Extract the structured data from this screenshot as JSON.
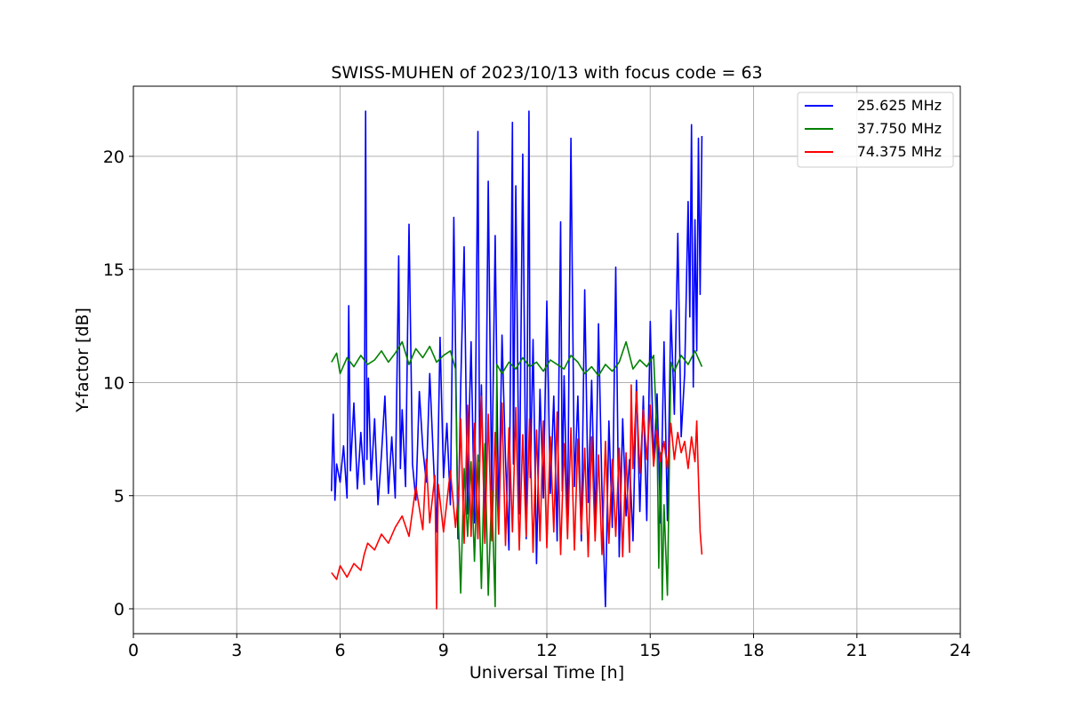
{
  "chart_data": {
    "type": "line",
    "title": "SWISS-MUHEN of 2023/10/13 with focus code = 63",
    "xlabel": "Universal Time [h]",
    "ylabel": "Y-factor [dB]",
    "xlim": [
      0,
      24
    ],
    "ylim": [
      -1.1,
      23.1
    ],
    "xticks": [
      0,
      3,
      6,
      9,
      12,
      15,
      18,
      21,
      24
    ],
    "yticks": [
      0,
      5,
      10,
      15,
      20
    ],
    "grid": true,
    "legend_position": "top-right",
    "series": [
      {
        "name": "25.625 MHz",
        "color": "#0000ff",
        "x": [
          5.75,
          5.8,
          5.85,
          5.9,
          6.0,
          6.1,
          6.2,
          6.25,
          6.3,
          6.4,
          6.5,
          6.6,
          6.7,
          6.74,
          6.78,
          6.82,
          6.9,
          7.0,
          7.1,
          7.2,
          7.3,
          7.4,
          7.5,
          7.6,
          7.7,
          7.75,
          7.8,
          7.9,
          8.0,
          8.1,
          8.2,
          8.3,
          8.4,
          8.5,
          8.6,
          8.7,
          8.8,
          8.9,
          9.0,
          9.1,
          9.2,
          9.3,
          9.38,
          9.42,
          9.5,
          9.6,
          9.7,
          9.75,
          9.8,
          9.9,
          10.0,
          10.05,
          10.1,
          10.2,
          10.3,
          10.4,
          10.5,
          10.6,
          10.7,
          10.8,
          10.9,
          11.0,
          11.03,
          11.1,
          11.2,
          11.3,
          11.4,
          11.48,
          11.52,
          11.6,
          11.7,
          11.8,
          11.9,
          12.0,
          12.1,
          12.2,
          12.3,
          12.4,
          12.45,
          12.5,
          12.6,
          12.7,
          12.8,
          12.9,
          13.0,
          13.1,
          13.2,
          13.3,
          13.4,
          13.5,
          13.6,
          13.7,
          13.8,
          13.9,
          14.0,
          14.1,
          14.2,
          14.3,
          14.4,
          14.5,
          14.6,
          14.7,
          14.8,
          14.9,
          15.0,
          15.1,
          15.2,
          15.3,
          15.4,
          15.5,
          15.6,
          15.7,
          15.8,
          15.9,
          16.0,
          16.1,
          16.15,
          16.2,
          16.25,
          16.3,
          16.35,
          16.4,
          16.45,
          16.5
        ],
        "values": [
          5.2,
          8.6,
          4.8,
          6.4,
          5.6,
          7.2,
          4.9,
          13.4,
          6.1,
          9.1,
          5.3,
          7.8,
          5.5,
          22.0,
          6.6,
          10.2,
          5.7,
          8.4,
          4.6,
          6.8,
          9.4,
          5.1,
          7.6,
          4.9,
          15.6,
          6.2,
          8.8,
          5.4,
          17.0,
          6.4,
          4.8,
          9.6,
          7.1,
          5.6,
          10.4,
          6.9,
          3.4,
          12.0,
          5.8,
          8.2,
          4.6,
          17.3,
          7.9,
          3.1,
          9.8,
          16.0,
          4.2,
          8.6,
          11.8,
          3.8,
          21.1,
          6.5,
          9.9,
          2.9,
          18.9,
          5.1,
          16.5,
          3.7,
          12.1,
          6.6,
          2.6,
          21.5,
          6.4,
          18.7,
          4.2,
          20.1,
          3.1,
          22.0,
          5.8,
          11.9,
          2.0,
          9.7,
          4.9,
          13.6,
          5.1,
          9.4,
          3.0,
          17.1,
          5.2,
          10.3,
          3.5,
          20.8,
          5.4,
          9.4,
          3.0,
          14.1,
          4.7,
          10.1,
          3.5,
          12.6,
          5.2,
          0.1,
          8.3,
          3.6,
          15.1,
          2.3,
          8.4,
          4.1,
          6.6,
          3.0,
          10.1,
          4.3,
          9.4,
          3.9,
          12.7,
          6.4,
          9.5,
          3.8,
          11.8,
          3.9,
          13.2,
          8.6,
          16.6,
          7.6,
          10.4,
          18.0,
          12.9,
          21.4,
          9.8,
          17.2,
          11.4,
          20.8,
          13.9,
          20.9
        ]
      },
      {
        "name": "37.750 MHz",
        "color": "#008000",
        "x": [
          5.75,
          5.9,
          6.0,
          6.2,
          6.4,
          6.6,
          6.8,
          7.0,
          7.2,
          7.4,
          7.6,
          7.8,
          8.0,
          8.2,
          8.4,
          8.6,
          8.8,
          9.0,
          9.2,
          9.35,
          9.4,
          9.5,
          9.6,
          9.7,
          9.8,
          9.9,
          10.0,
          10.1,
          10.2,
          10.3,
          10.4,
          10.5,
          10.55,
          10.7,
          10.9,
          11.1,
          11.3,
          11.5,
          11.7,
          11.9,
          12.1,
          12.3,
          12.5,
          12.7,
          12.9,
          13.1,
          13.3,
          13.5,
          13.7,
          13.9,
          14.1,
          14.3,
          14.5,
          14.7,
          14.9,
          15.1,
          15.2,
          15.25,
          15.3,
          15.35,
          15.4,
          15.5,
          15.6,
          15.7,
          15.9,
          16.1,
          16.3,
          16.5
        ],
        "values": [
          10.9,
          11.3,
          10.4,
          11.1,
          10.7,
          11.2,
          10.8,
          11.0,
          11.4,
          10.9,
          11.3,
          11.8,
          10.8,
          11.5,
          11.1,
          11.6,
          10.9,
          11.2,
          11.4,
          10.6,
          5.5,
          0.7,
          6.2,
          3.2,
          6.5,
          2.1,
          6.8,
          0.9,
          7.3,
          0.6,
          5.2,
          0.1,
          10.8,
          10.4,
          10.9,
          10.6,
          11.1,
          10.7,
          10.9,
          10.5,
          11.0,
          10.8,
          10.6,
          11.2,
          10.9,
          10.4,
          10.7,
          10.3,
          10.8,
          10.5,
          10.9,
          11.8,
          10.6,
          11.0,
          10.7,
          11.2,
          7.6,
          1.8,
          6.9,
          0.4,
          4.6,
          0.6,
          10.9,
          10.5,
          11.2,
          10.8,
          11.4,
          10.7
        ]
      },
      {
        "name": "74.375 MHz",
        "color": "#ff0000",
        "x": [
          5.75,
          5.9,
          6.0,
          6.2,
          6.4,
          6.6,
          6.7,
          6.8,
          7.0,
          7.2,
          7.4,
          7.6,
          7.8,
          8.0,
          8.2,
          8.4,
          8.5,
          8.6,
          8.75,
          8.8,
          8.85,
          9.0,
          9.2,
          9.35,
          9.45,
          9.5,
          9.6,
          9.7,
          9.8,
          9.9,
          10.0,
          10.1,
          10.2,
          10.3,
          10.4,
          10.5,
          10.6,
          10.7,
          10.8,
          10.9,
          11.0,
          11.1,
          11.2,
          11.3,
          11.4,
          11.5,
          11.6,
          11.7,
          11.8,
          11.9,
          12.0,
          12.1,
          12.2,
          12.3,
          12.4,
          12.5,
          12.6,
          12.7,
          12.8,
          12.9,
          13.0,
          13.1,
          13.2,
          13.3,
          13.4,
          13.5,
          13.6,
          13.7,
          13.8,
          13.9,
          14.0,
          14.1,
          14.2,
          14.3,
          14.4,
          14.45,
          14.5,
          14.6,
          14.7,
          14.8,
          14.9,
          15.0,
          15.1,
          15.2,
          15.3,
          15.4,
          15.5,
          15.6,
          15.7,
          15.8,
          15.9,
          16.0,
          16.1,
          16.2,
          16.3,
          16.35,
          16.4,
          16.45,
          16.5
        ],
        "values": [
          1.6,
          1.3,
          1.9,
          1.4,
          2.0,
          1.7,
          2.4,
          2.9,
          2.6,
          3.3,
          2.9,
          3.6,
          4.1,
          3.2,
          5.4,
          3.5,
          6.6,
          3.8,
          5.9,
          0.0,
          5.5,
          3.4,
          6.1,
          3.6,
          5.4,
          8.4,
          2.9,
          9.0,
          3.2,
          8.2,
          3.1,
          9.4,
          2.9,
          8.6,
          3.0,
          7.8,
          3.3,
          9.1,
          2.8,
          8.0,
          3.4,
          8.9,
          2.6,
          7.7,
          3.2,
          8.4,
          2.5,
          7.9,
          3.0,
          8.3,
          2.7,
          7.6,
          3.4,
          8.7,
          2.4,
          7.3,
          3.1,
          8.0,
          2.6,
          7.5,
          3.3,
          7.1,
          2.3,
          7.6,
          3.0,
          6.8,
          2.4,
          7.4,
          2.9,
          6.6,
          3.2,
          7.1,
          2.3,
          6.9,
          2.5,
          9.9,
          6.2,
          9.6,
          6.0,
          8.8,
          6.6,
          9.0,
          6.3,
          7.9,
          6.5,
          7.4,
          6.2,
          8.2,
          6.6,
          7.8,
          6.9,
          7.4,
          6.2,
          7.6,
          6.5,
          8.3,
          5.8,
          3.4,
          2.4
        ]
      }
    ]
  }
}
